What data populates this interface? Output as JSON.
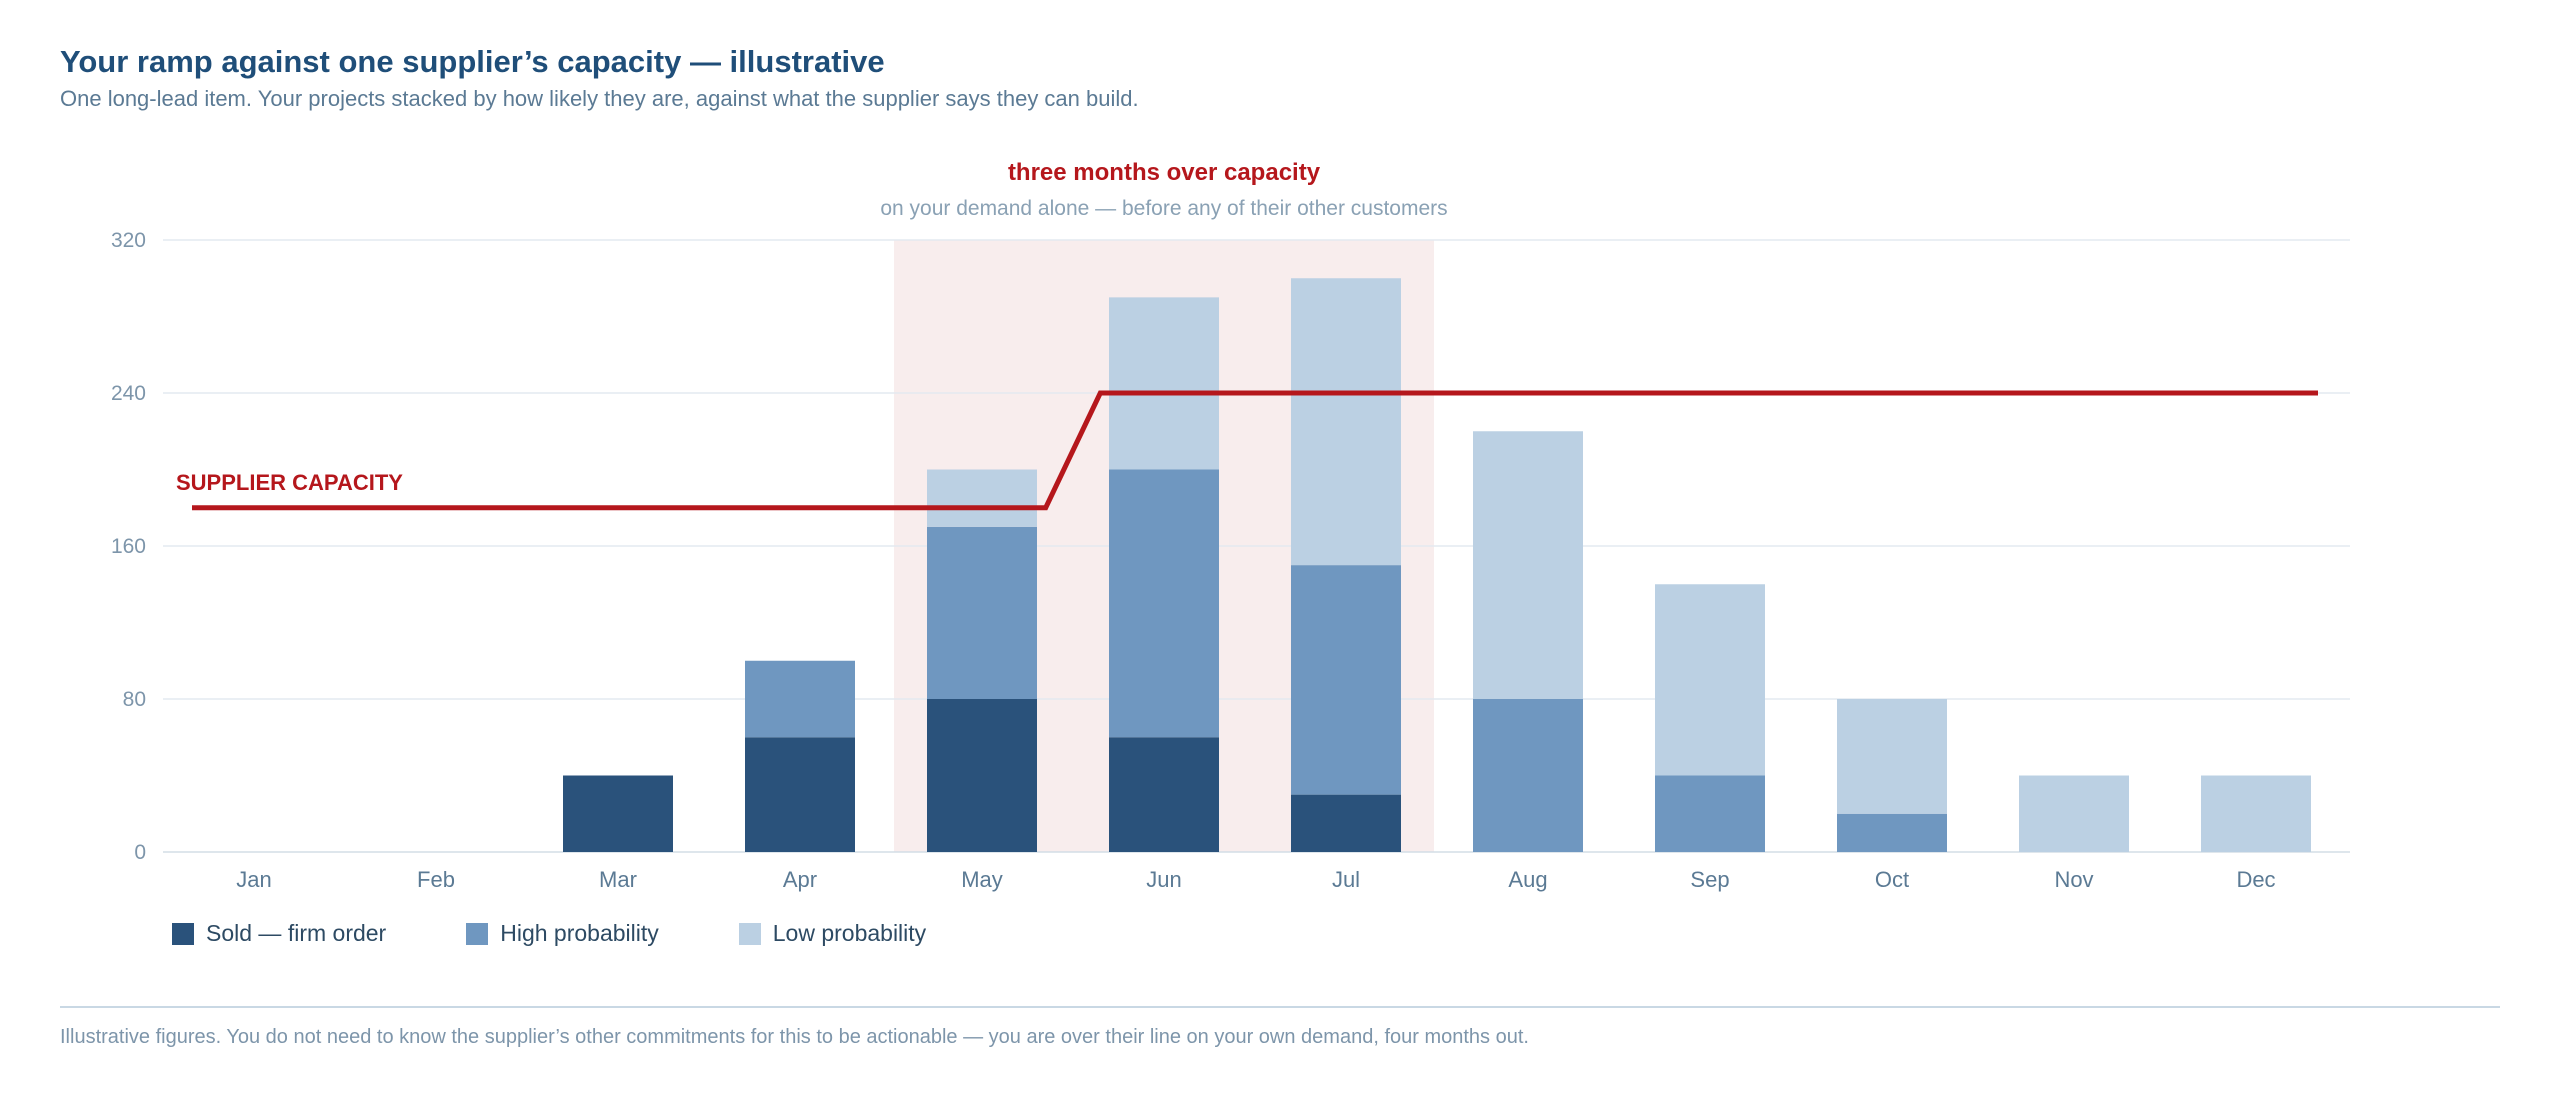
{
  "header": {
    "title": "Your ramp against one supplier’s capacity — illustrative",
    "subtitle": "One long-lead item. Your projects stacked by how likely they are, against what the supplier says they can build."
  },
  "annotation": {
    "title": "three months over capacity",
    "subtitle": "on your demand alone — before any of their other customers"
  },
  "capacity_label": "SUPPLIER CAPACITY",
  "footnote": "Illustrative figures. You do not need to know the supplier’s other commitments for this to be actionable — you are over their line on your own demand, four months out.",
  "chart_data": {
    "type": "bar",
    "stacked": true,
    "categories": [
      "Jan",
      "Feb",
      "Mar",
      "Apr",
      "May",
      "Jun",
      "Jul",
      "Aug",
      "Sep",
      "Oct",
      "Nov",
      "Dec"
    ],
    "series": [
      {
        "name": "Sold — firm order",
        "color": "#2a527b",
        "values": [
          0,
          0,
          40,
          60,
          80,
          60,
          30,
          0,
          0,
          0,
          0,
          0
        ]
      },
      {
        "name": "High probability",
        "color": "#6f97c0",
        "values": [
          0,
          0,
          0,
          40,
          90,
          140,
          120,
          80,
          40,
          20,
          0,
          0
        ]
      },
      {
        "name": "Low probability",
        "color": "#bbd0e3",
        "values": [
          0,
          0,
          0,
          0,
          30,
          90,
          150,
          140,
          100,
          60,
          40,
          40
        ]
      }
    ],
    "capacity": {
      "name": "SUPPLIER CAPACITY",
      "color": "#b5171c",
      "points": [
        {
          "x": "Jan",
          "y": 180
        },
        {
          "x": "May+0.35",
          "y": 180
        },
        {
          "x": "Jun-0.35",
          "y": 240
        },
        {
          "x": "Dec",
          "y": 240
        }
      ]
    },
    "highlight": {
      "from": "May",
      "to": "Jul",
      "color": "#f8eded"
    },
    "ylim": [
      0,
      320
    ],
    "yticks": [
      0,
      80,
      160,
      240,
      320
    ],
    "grid": true,
    "legend": "bottom-left"
  }
}
